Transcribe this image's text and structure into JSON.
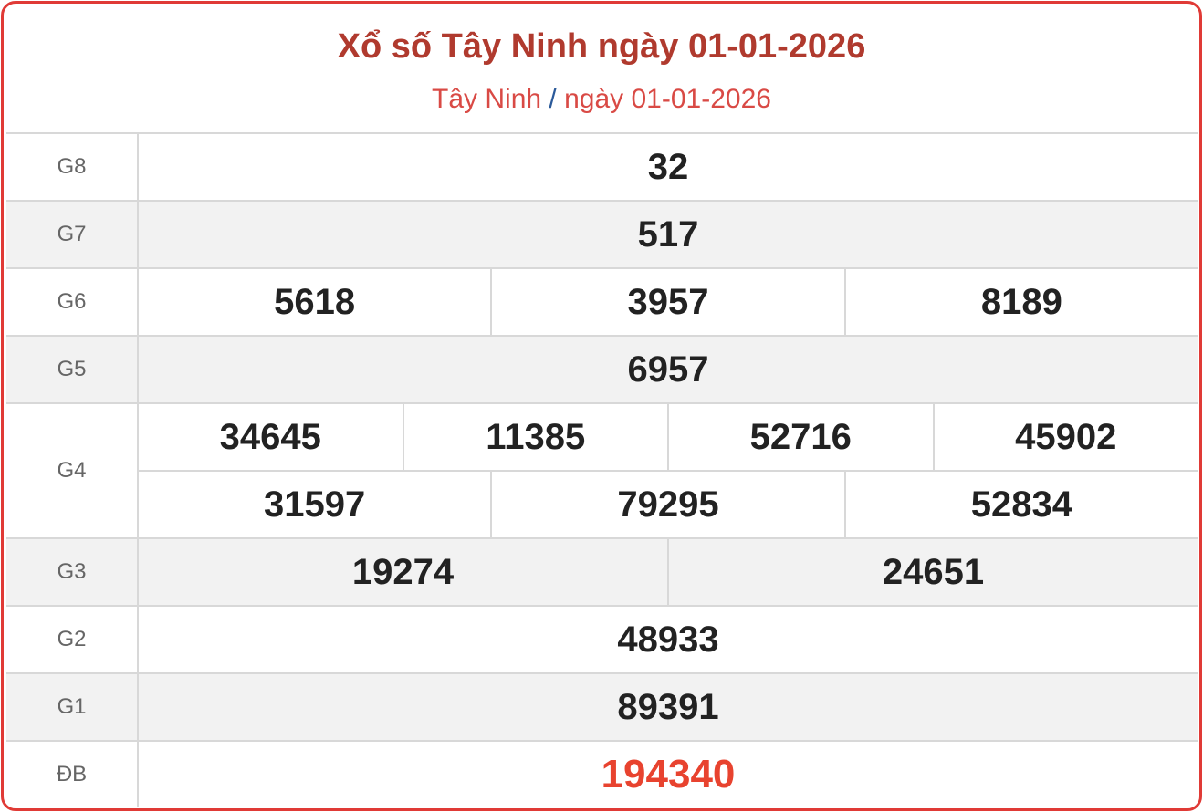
{
  "header": {
    "title": "Xổ số Tây Ninh ngày 01-01-2026",
    "breadcrumb": {
      "province": "Tây Ninh",
      "separator": "/",
      "date": "ngày 01-01-2026"
    }
  },
  "colors": {
    "border": "#e03a36",
    "title": "#b03a2e",
    "special_prize": "#e8432f"
  },
  "prizes": [
    {
      "label": "G8",
      "rows": [
        [
          "32"
        ]
      ]
    },
    {
      "label": "G7",
      "rows": [
        [
          "517"
        ]
      ]
    },
    {
      "label": "G6",
      "rows": [
        [
          "5618",
          "3957",
          "8189"
        ]
      ]
    },
    {
      "label": "G5",
      "rows": [
        [
          "6957"
        ]
      ]
    },
    {
      "label": "G4",
      "rows": [
        [
          "34645",
          "11385",
          "52716",
          "45902"
        ],
        [
          "31597",
          "79295",
          "52834"
        ]
      ]
    },
    {
      "label": "G3",
      "rows": [
        [
          "19274",
          "24651"
        ]
      ]
    },
    {
      "label": "G2",
      "rows": [
        [
          "48933"
        ]
      ]
    },
    {
      "label": "G1",
      "rows": [
        [
          "89391"
        ]
      ]
    },
    {
      "label": "ĐB",
      "rows": [
        [
          "194340"
        ]
      ]
    }
  ]
}
